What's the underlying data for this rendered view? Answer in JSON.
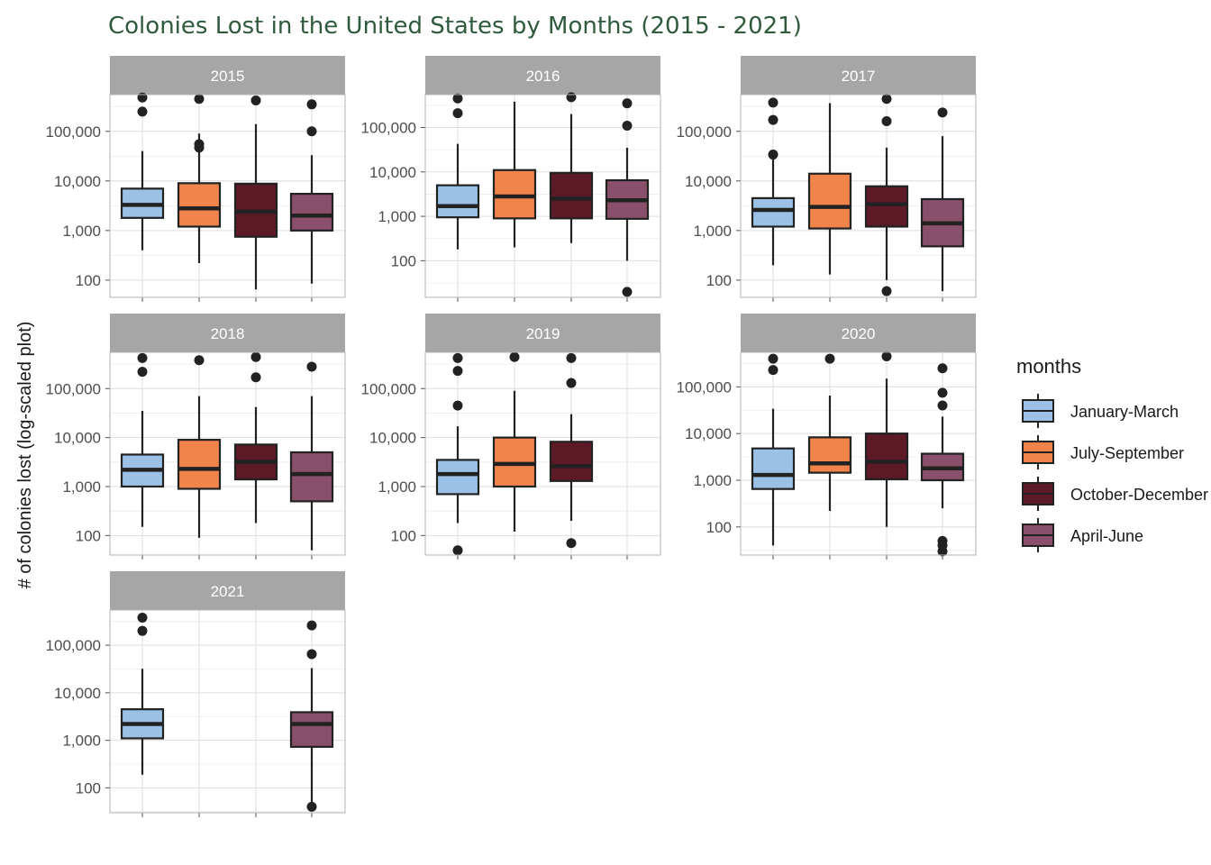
{
  "chart_data": {
    "type": "boxplot",
    "title": "Colonies Lost in the United States by Months (2015 - 2021)",
    "ylabel": "# of colonies lost (log-scaled plot)",
    "yscale": "log10",
    "yticks": [
      100,
      1000,
      10000,
      100000
    ],
    "ytick_labels": [
      "100",
      "1,000",
      "10,000",
      "100,000"
    ],
    "grid": true,
    "legend": {
      "title": "months",
      "placement": "right",
      "entries": [
        "January-March",
        "July-September",
        "October-December",
        "April-June"
      ]
    },
    "colors": {
      "January-March": "#9bc2e6",
      "July-September": "#f0844a",
      "October-December": "#5c1a27",
      "April-June": "#8a4f6a",
      "strip": "#a6a6a6",
      "title": "#2f5a3c"
    },
    "categories": [
      "January-March",
      "July-September",
      "October-December",
      "April-June"
    ],
    "panels": [
      {
        "year": "2015",
        "ylim": [
          45,
          550000
        ],
        "boxes": [
          {
            "group": "January-March",
            "min": 400,
            "q1": 1800,
            "median": 3300,
            "q3": 7000,
            "max": 40000,
            "outliers": [
              480000,
              250000
            ]
          },
          {
            "group": "July-September",
            "min": 220,
            "q1": 1200,
            "median": 2800,
            "q3": 9000,
            "max": 90000,
            "outliers": [
              450000,
              55000,
              47000
            ]
          },
          {
            "group": "October-December",
            "min": 65,
            "q1": 750,
            "median": 2400,
            "q3": 8800,
            "max": 140000,
            "outliers": [
              420000
            ]
          },
          {
            "group": "April-June",
            "min": 85,
            "q1": 1000,
            "median": 2000,
            "q3": 5500,
            "max": 33000,
            "outliers": [
              350000,
              100000
            ]
          }
        ]
      },
      {
        "year": "2016",
        "ylim": [
          15,
          550000
        ],
        "boxes": [
          {
            "group": "January-March",
            "min": 180,
            "q1": 950,
            "median": 1700,
            "q3": 5000,
            "max": 43000,
            "outliers": [
              450000,
              210000
            ]
          },
          {
            "group": "July-September",
            "min": 200,
            "q1": 900,
            "median": 2800,
            "q3": 11000,
            "max": 380000,
            "outliers": []
          },
          {
            "group": "October-December",
            "min": 250,
            "q1": 900,
            "median": 2500,
            "q3": 9500,
            "max": 200000,
            "outliers": [
              480000
            ]
          },
          {
            "group": "April-June",
            "min": 100,
            "q1": 880,
            "median": 2300,
            "q3": 6500,
            "max": 35000,
            "outliers": [
              350000,
              110000,
              20
            ]
          }
        ]
      },
      {
        "year": "2017",
        "ylim": [
          45,
          550000
        ],
        "boxes": [
          {
            "group": "January-March",
            "min": 200,
            "q1": 1200,
            "median": 2600,
            "q3": 4500,
            "max": 34000,
            "outliers": [
              380000,
              170000,
              34000
            ]
          },
          {
            "group": "July-September",
            "min": 130,
            "q1": 1100,
            "median": 3000,
            "q3": 14000,
            "max": 370000,
            "outliers": []
          },
          {
            "group": "October-December",
            "min": 100,
            "q1": 1200,
            "median": 3400,
            "q3": 7800,
            "max": 47000,
            "outliers": [
              450000,
              160000,
              60
            ]
          },
          {
            "group": "April-June",
            "min": 60,
            "q1": 480,
            "median": 1400,
            "q3": 4300,
            "max": 80000,
            "outliers": [
              240000
            ]
          }
        ]
      },
      {
        "year": "2018",
        "ylim": [
          40,
          550000
        ],
        "boxes": [
          {
            "group": "January-March",
            "min": 150,
            "q1": 1000,
            "median": 2200,
            "q3": 4500,
            "max": 35000,
            "outliers": [
              420000,
              220000
            ]
          },
          {
            "group": "July-September",
            "min": 90,
            "q1": 900,
            "median": 2300,
            "q3": 9000,
            "max": 70000,
            "outliers": [
              380000
            ]
          },
          {
            "group": "October-December",
            "min": 180,
            "q1": 1400,
            "median": 3200,
            "q3": 7200,
            "max": 42000,
            "outliers": [
              440000,
              170000
            ]
          },
          {
            "group": "April-June",
            "min": 50,
            "q1": 500,
            "median": 1800,
            "q3": 5000,
            "max": 70000,
            "outliers": [
              280000
            ]
          }
        ]
      },
      {
        "year": "2019",
        "ylim": [
          40,
          550000
        ],
        "boxes": [
          {
            "group": "January-March",
            "min": 180,
            "q1": 700,
            "median": 1800,
            "q3": 3500,
            "max": 17000,
            "outliers": [
              420000,
              230000,
              45000,
              50
            ]
          },
          {
            "group": "July-September",
            "min": 120,
            "q1": 1000,
            "median": 2900,
            "q3": 10000,
            "max": 90000,
            "outliers": [
              440000
            ]
          },
          {
            "group": "October-December",
            "min": 200,
            "q1": 1300,
            "median": 2600,
            "q3": 8200,
            "max": 30000,
            "outliers": [
              420000,
              130000,
              70
            ]
          },
          {
            "group": "April-June",
            "min": null,
            "q1": null,
            "median": null,
            "q3": null,
            "max": null,
            "outliers": []
          }
        ]
      },
      {
        "year": "2020",
        "ylim": [
          25,
          550000
        ],
        "boxes": [
          {
            "group": "January-March",
            "min": 40,
            "q1": 650,
            "median": 1300,
            "q3": 4800,
            "max": 34000,
            "outliers": [
              400000,
              230000
            ]
          },
          {
            "group": "July-September",
            "min": 220,
            "q1": 1450,
            "median": 2300,
            "q3": 8300,
            "max": 65000,
            "outliers": [
              400000
            ]
          },
          {
            "group": "October-December",
            "min": 100,
            "q1": 1050,
            "median": 2500,
            "q3": 10000,
            "max": 150000,
            "outliers": [
              450000
            ]
          },
          {
            "group": "April-June",
            "min": 250,
            "q1": 1000,
            "median": 1800,
            "q3": 3700,
            "max": 23000,
            "outliers": [
              250000,
              75000,
              40000,
              50,
              40,
              30
            ]
          }
        ]
      },
      {
        "year": "2021",
        "ylim": [
          30,
          550000
        ],
        "boxes": [
          {
            "group": "January-March",
            "min": 190,
            "q1": 1100,
            "median": 2200,
            "q3": 4500,
            "max": 32000,
            "outliers": [
              380000,
              200000
            ]
          },
          {
            "group": "July-September",
            "min": null,
            "q1": null,
            "median": null,
            "q3": null,
            "max": null,
            "outliers": []
          },
          {
            "group": "October-December",
            "min": null,
            "q1": null,
            "median": null,
            "q3": null,
            "max": null,
            "outliers": []
          },
          {
            "group": "April-June",
            "min": 40,
            "q1": 730,
            "median": 2200,
            "q3": 3900,
            "max": 33000,
            "outliers": [
              260000,
              65000,
              40
            ]
          }
        ]
      }
    ]
  }
}
